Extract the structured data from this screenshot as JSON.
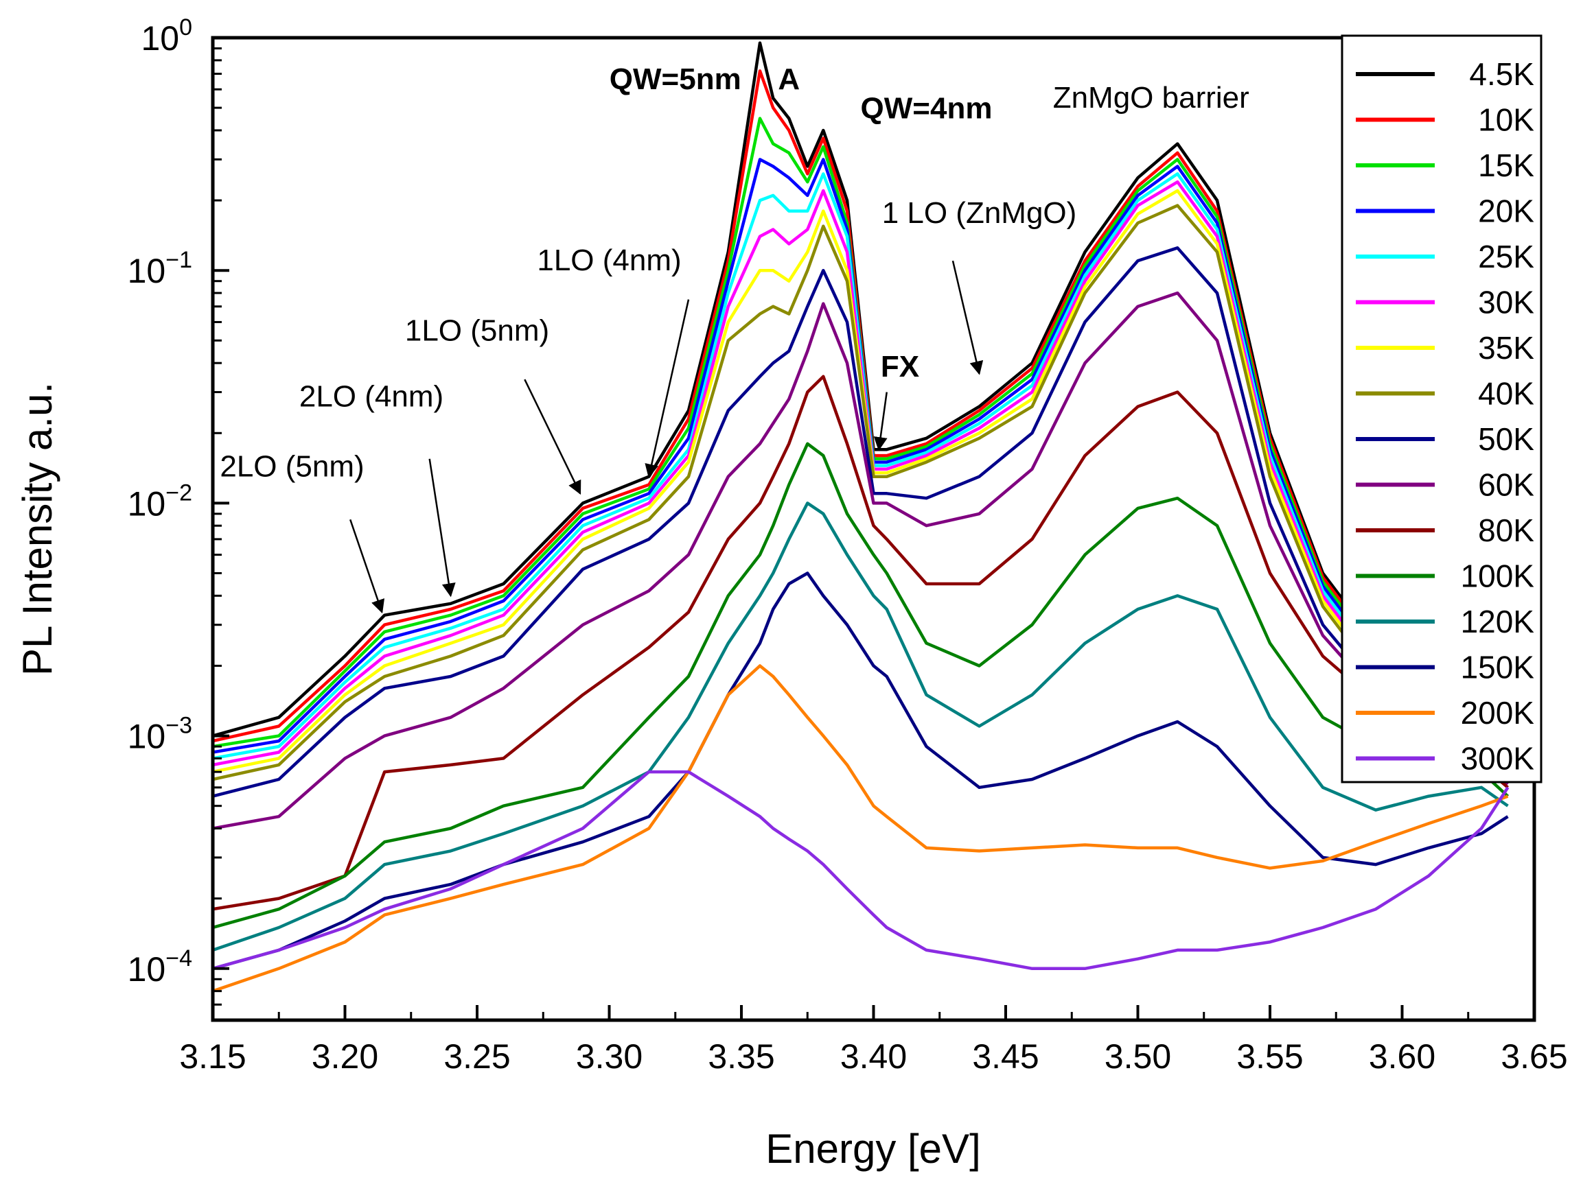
{
  "chart_data": {
    "type": "line",
    "title": "",
    "xlabel": "Energy [eV]",
    "ylabel": "PL Intensity a.u.",
    "xlim": [
      3.15,
      3.65
    ],
    "ylim": [
      6e-05,
      1
    ],
    "yscale": "log",
    "grid": false,
    "legend_position": "top-right",
    "x_ticks": [
      3.15,
      3.2,
      3.25,
      3.3,
      3.35,
      3.4,
      3.45,
      3.5,
      3.55,
      3.6,
      3.65
    ],
    "x_tick_labels": [
      "3.15",
      "3.20",
      "3.25",
      "3.30",
      "3.35",
      "3.40",
      "3.45",
      "3.50",
      "3.55",
      "3.60",
      "3.65"
    ],
    "y_ticks": [
      {
        "value": 0.0001,
        "base": "10",
        "exp": "−4"
      },
      {
        "value": 0.001,
        "base": "10",
        "exp": "−3"
      },
      {
        "value": 0.01,
        "base": "10",
        "exp": "−2"
      },
      {
        "value": 0.1,
        "base": "10",
        "exp": "−1"
      },
      {
        "value": 1,
        "base": "10",
        "exp": "0"
      }
    ],
    "x": [
      3.15,
      3.175,
      3.2,
      3.215,
      3.24,
      3.26,
      3.29,
      3.315,
      3.33,
      3.345,
      3.357,
      3.362,
      3.368,
      3.375,
      3.381,
      3.39,
      3.4,
      3.405,
      3.42,
      3.44,
      3.46,
      3.48,
      3.5,
      3.515,
      3.53,
      3.55,
      3.57,
      3.59,
      3.61,
      3.63,
      3.64
    ],
    "series": [
      {
        "name": "4.5K",
        "color": "#000000",
        "values": [
          0.001,
          0.0012,
          0.0022,
          0.0033,
          0.0037,
          0.0045,
          0.01,
          0.013,
          0.025,
          0.12,
          0.95,
          0.55,
          0.45,
          0.28,
          0.4,
          0.2,
          0.017,
          0.017,
          0.019,
          0.026,
          0.04,
          0.12,
          0.25,
          0.35,
          0.2,
          0.02,
          0.005,
          0.0025,
          0.0015,
          0.001,
          0.0008
        ]
      },
      {
        "name": "10K",
        "color": "#ff0000",
        "values": [
          0.00095,
          0.0011,
          0.002,
          0.003,
          0.0035,
          0.0042,
          0.0095,
          0.012,
          0.023,
          0.11,
          0.72,
          0.5,
          0.4,
          0.26,
          0.37,
          0.18,
          0.016,
          0.016,
          0.018,
          0.025,
          0.038,
          0.11,
          0.23,
          0.32,
          0.18,
          0.019,
          0.0048,
          0.0024,
          0.0014,
          0.00095,
          0.00078
        ]
      },
      {
        "name": "15K",
        "color": "#00e000",
        "values": [
          0.0009,
          0.001,
          0.0019,
          0.0028,
          0.0033,
          0.004,
          0.009,
          0.0115,
          0.021,
          0.1,
          0.45,
          0.35,
          0.32,
          0.24,
          0.34,
          0.16,
          0.0155,
          0.0155,
          0.0175,
          0.024,
          0.036,
          0.105,
          0.22,
          0.3,
          0.17,
          0.018,
          0.0046,
          0.0023,
          0.0014,
          0.00092,
          0.00076
        ]
      },
      {
        "name": "20K",
        "color": "#0000ff",
        "values": [
          0.00085,
          0.00095,
          0.0018,
          0.0026,
          0.0031,
          0.0038,
          0.0085,
          0.011,
          0.019,
          0.09,
          0.3,
          0.28,
          0.25,
          0.21,
          0.3,
          0.15,
          0.015,
          0.015,
          0.017,
          0.023,
          0.034,
          0.1,
          0.21,
          0.28,
          0.16,
          0.017,
          0.0044,
          0.0022,
          0.0013,
          0.0009,
          0.00074
        ]
      },
      {
        "name": "25K",
        "color": "#00ffff",
        "values": [
          0.0008,
          0.0009,
          0.0017,
          0.0024,
          0.0029,
          0.0035,
          0.008,
          0.0105,
          0.017,
          0.08,
          0.2,
          0.21,
          0.18,
          0.18,
          0.26,
          0.14,
          0.0145,
          0.0145,
          0.0165,
          0.022,
          0.032,
          0.095,
          0.2,
          0.26,
          0.15,
          0.016,
          0.0042,
          0.0021,
          0.0013,
          0.00088,
          0.00072
        ]
      },
      {
        "name": "30K",
        "color": "#ff00ff",
        "values": [
          0.00075,
          0.00085,
          0.0016,
          0.0022,
          0.0027,
          0.0033,
          0.0075,
          0.01,
          0.016,
          0.07,
          0.14,
          0.15,
          0.13,
          0.15,
          0.22,
          0.12,
          0.014,
          0.014,
          0.016,
          0.021,
          0.03,
          0.09,
          0.19,
          0.24,
          0.14,
          0.015,
          0.004,
          0.002,
          0.0012,
          0.00086,
          0.0007
        ]
      },
      {
        "name": "35K",
        "color": "#ffff00",
        "values": [
          0.0007,
          0.0008,
          0.0015,
          0.002,
          0.0025,
          0.003,
          0.007,
          0.0095,
          0.015,
          0.06,
          0.1,
          0.1,
          0.09,
          0.12,
          0.18,
          0.1,
          0.0135,
          0.0135,
          0.0155,
          0.02,
          0.028,
          0.085,
          0.175,
          0.22,
          0.13,
          0.014,
          0.0038,
          0.0019,
          0.0012,
          0.00084,
          0.00068
        ]
      },
      {
        "name": "40K",
        "color": "#8b8b00",
        "values": [
          0.00065,
          0.00075,
          0.0014,
          0.0018,
          0.0022,
          0.0027,
          0.0063,
          0.0085,
          0.013,
          0.05,
          0.065,
          0.07,
          0.065,
          0.1,
          0.155,
          0.09,
          0.013,
          0.013,
          0.015,
          0.019,
          0.026,
          0.08,
          0.16,
          0.19,
          0.12,
          0.013,
          0.0036,
          0.0018,
          0.0011,
          0.00082,
          0.00066
        ]
      },
      {
        "name": "50K",
        "color": "#00008b",
        "values": [
          0.00055,
          0.00065,
          0.0012,
          0.0016,
          0.0018,
          0.0022,
          0.0052,
          0.007,
          0.01,
          0.025,
          0.035,
          0.04,
          0.045,
          0.07,
          0.1,
          0.06,
          0.011,
          0.011,
          0.0105,
          0.013,
          0.02,
          0.06,
          0.11,
          0.125,
          0.08,
          0.01,
          0.003,
          0.0016,
          0.001,
          0.0008,
          0.00064
        ]
      },
      {
        "name": "60K",
        "color": "#800080",
        "values": [
          0.0004,
          0.00045,
          0.0008,
          0.001,
          0.0012,
          0.0016,
          0.003,
          0.0042,
          0.006,
          0.013,
          0.018,
          0.022,
          0.028,
          0.045,
          0.072,
          0.04,
          0.01,
          0.01,
          0.008,
          0.009,
          0.014,
          0.04,
          0.07,
          0.08,
          0.05,
          0.008,
          0.0027,
          0.0015,
          0.001,
          0.00078,
          0.00062
        ]
      },
      {
        "name": "80K",
        "color": "#8b0000",
        "values": [
          0.00018,
          0.0002,
          0.00025,
          0.0007,
          0.00075,
          0.0008,
          0.0015,
          0.0024,
          0.0034,
          0.007,
          0.01,
          0.013,
          0.018,
          0.03,
          0.035,
          0.018,
          0.008,
          0.007,
          0.0045,
          0.0045,
          0.007,
          0.016,
          0.026,
          0.03,
          0.02,
          0.005,
          0.0022,
          0.0014,
          0.001,
          0.00075,
          0.0006
        ]
      },
      {
        "name": "100K",
        "color": "#008000",
        "values": [
          0.00015,
          0.00018,
          0.00025,
          0.00035,
          0.0004,
          0.0005,
          0.0006,
          0.0012,
          0.0018,
          0.004,
          0.006,
          0.008,
          0.012,
          0.018,
          0.016,
          0.009,
          0.006,
          0.005,
          0.0025,
          0.002,
          0.003,
          0.006,
          0.0095,
          0.0105,
          0.008,
          0.0025,
          0.0012,
          0.0009,
          0.00085,
          0.0007,
          0.00055
        ]
      },
      {
        "name": "120K",
        "color": "#008080",
        "values": [
          0.00012,
          0.00015,
          0.0002,
          0.00028,
          0.00032,
          0.00038,
          0.0005,
          0.0007,
          0.0012,
          0.0025,
          0.004,
          0.005,
          0.007,
          0.01,
          0.009,
          0.006,
          0.004,
          0.0035,
          0.0015,
          0.0011,
          0.0015,
          0.0025,
          0.0035,
          0.004,
          0.0035,
          0.0012,
          0.0006,
          0.00048,
          0.00055,
          0.0006,
          0.0005
        ]
      },
      {
        "name": "150K",
        "color": "#000080",
        "values": [
          0.0001,
          0.00012,
          0.00016,
          0.0002,
          0.00023,
          0.00028,
          0.00035,
          0.00045,
          0.0007,
          0.0015,
          0.0025,
          0.0035,
          0.0045,
          0.005,
          0.004,
          0.003,
          0.002,
          0.0018,
          0.0009,
          0.0006,
          0.00065,
          0.0008,
          0.001,
          0.00115,
          0.0009,
          0.0005,
          0.0003,
          0.00028,
          0.00033,
          0.00038,
          0.00045
        ]
      },
      {
        "name": "200K",
        "color": "#ff7f00",
        "values": [
          8e-05,
          0.0001,
          0.00013,
          0.00017,
          0.0002,
          0.00023,
          0.00028,
          0.0004,
          0.0007,
          0.0015,
          0.002,
          0.0018,
          0.0015,
          0.0012,
          0.001,
          0.00075,
          0.0005,
          0.00045,
          0.00033,
          0.00032,
          0.00033,
          0.00034,
          0.00033,
          0.00033,
          0.0003,
          0.00027,
          0.00029,
          0.00035,
          0.00042,
          0.0005,
          0.00055
        ]
      },
      {
        "name": "300K",
        "color": "#8a2be2",
        "values": [
          0.0001,
          0.00012,
          0.00015,
          0.00018,
          0.00022,
          0.00028,
          0.0004,
          0.0007,
          0.0007,
          0.00055,
          0.00045,
          0.0004,
          0.00036,
          0.00032,
          0.00028,
          0.00022,
          0.00017,
          0.00015,
          0.00012,
          0.00011,
          0.0001,
          0.0001,
          0.00011,
          0.00012,
          0.00012,
          0.00013,
          0.00015,
          0.00018,
          0.00025,
          0.0004,
          0.0006
        ]
      }
    ],
    "annotations": [
      {
        "text": "QW=5nm",
        "bold": true,
        "x": 3.325,
        "y": 0.6,
        "anchor": "middle"
      },
      {
        "text": "A",
        "bold": true,
        "x": 3.368,
        "y": 0.6,
        "anchor": "middle"
      },
      {
        "text": "QW=4nm",
        "bold": true,
        "x": 3.42,
        "y": 0.45,
        "anchor": "middle"
      },
      {
        "text": "ZnMgO barrier",
        "bold": false,
        "x": 3.505,
        "y": 0.5,
        "anchor": "middle"
      },
      {
        "text": "1 LO (ZnMgO)",
        "bold": false,
        "x": 3.44,
        "y": 0.16,
        "anchor": "middle"
      },
      {
        "text": "1LO (4nm)",
        "bold": false,
        "x": 3.3,
        "y": 0.1,
        "anchor": "middle"
      },
      {
        "text": "1LO (5nm)",
        "bold": false,
        "x": 3.25,
        "y": 0.05,
        "anchor": "middle"
      },
      {
        "text": "FX",
        "bold": true,
        "x": 3.41,
        "y": 0.035,
        "anchor": "middle"
      },
      {
        "text": "2LO (4nm)",
        "bold": false,
        "x": 3.21,
        "y": 0.026,
        "anchor": "middle"
      },
      {
        "text": "2LO (5nm)",
        "bold": false,
        "x": 3.18,
        "y": 0.013,
        "anchor": "middle"
      }
    ],
    "arrows": [
      {
        "name": "arrow-1lo-4nm",
        "x1": 3.33,
        "y1": 0.075,
        "x2": 3.315,
        "y2": 0.013
      },
      {
        "name": "arrow-1lo-5nm",
        "x1": 3.268,
        "y1": 0.034,
        "x2": 3.289,
        "y2": 0.011
      },
      {
        "name": "arrow-fx",
        "x1": 3.405,
        "y1": 0.03,
        "x2": 3.402,
        "y2": 0.017
      },
      {
        "name": "arrow-1lo-znmgo",
        "x1": 3.43,
        "y1": 0.11,
        "x2": 3.44,
        "y2": 0.036
      },
      {
        "name": "arrow-2lo-4nm",
        "x1": 3.232,
        "y1": 0.0155,
        "x2": 3.24,
        "y2": 0.004
      },
      {
        "name": "arrow-2lo-5nm",
        "x1": 3.202,
        "y1": 0.0085,
        "x2": 3.214,
        "y2": 0.0034
      }
    ]
  }
}
